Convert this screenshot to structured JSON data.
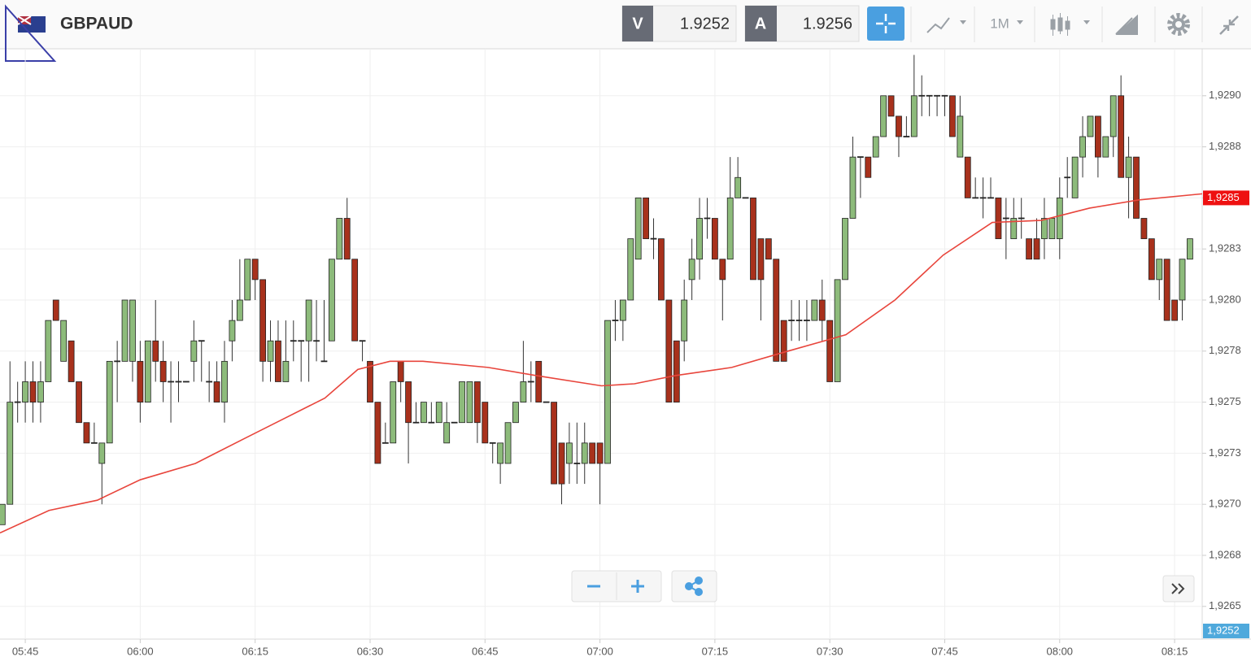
{
  "header": {
    "symbol": "GBPAUD",
    "bid_label": "V",
    "bid": "1.9252",
    "ask_label": "A",
    "ask": "1.9256",
    "timeframe": "1M"
  },
  "chart_data": {
    "type": "candlestick",
    "up_color": "#8dbb7b",
    "down_color": "#a8311c",
    "grid": true,
    "x": [
      342,
      343,
      344,
      345,
      346,
      347,
      348,
      349,
      350,
      351,
      352,
      353,
      354,
      355,
      356,
      357,
      358,
      359,
      360,
      361,
      362,
      363,
      364,
      365,
      366,
      367,
      368,
      369,
      370,
      371,
      372,
      373,
      374,
      375,
      376,
      377,
      378,
      379,
      380,
      381,
      382,
      383,
      384,
      385,
      386,
      387,
      388,
      389,
      390,
      391,
      392,
      393,
      394,
      395,
      396,
      397,
      398,
      399,
      400,
      401,
      402,
      403,
      404,
      405,
      406,
      407,
      408,
      409,
      410,
      411,
      412,
      413,
      414,
      415,
      416,
      417,
      418,
      419,
      420,
      421,
      422,
      423,
      424,
      425,
      426,
      427,
      428,
      429,
      430,
      431,
      432,
      433,
      434,
      435,
      436,
      437,
      438,
      439,
      440,
      441,
      442,
      443,
      444,
      445,
      446,
      447,
      448,
      449,
      450,
      451,
      452,
      453,
      454,
      455,
      456,
      457,
      458,
      459,
      460,
      461,
      462,
      463,
      464,
      465,
      466,
      467,
      468,
      469,
      470,
      471,
      472,
      473,
      474,
      475,
      476,
      477,
      478,
      479,
      480,
      481,
      482,
      483,
      484,
      485,
      486,
      487,
      488,
      489,
      490,
      491,
      492,
      493,
      494,
      495,
      496,
      497
    ],
    "open": [
      1.9269,
      1.927,
      1.9275,
      1.9275,
      1.9276,
      1.9275,
      1.9276,
      1.928,
      1.9277,
      1.9278,
      1.9276,
      1.9274,
      1.9273,
      1.9272,
      1.9273,
      1.9277,
      1.9277,
      1.9277,
      1.9277,
      1.9275,
      1.9278,
      1.9277,
      1.9276,
      1.9276,
      1.9276,
      1.9277,
      1.9278,
      1.9276,
      1.9276,
      1.9275,
      1.9278,
      1.9279,
      1.928,
      1.9282,
      1.9281,
      1.9277,
      1.9278,
      1.9276,
      1.9278,
      1.9278,
      1.9278,
      1.9278,
      1.9277,
      1.9278,
      1.9282,
      1.9284,
      1.9282,
      1.9278,
      1.9277,
      1.9275,
      1.9273,
      1.9273,
      1.9277,
      1.9276,
      1.9274,
      1.9274,
      1.9274,
      1.9274,
      1.9273,
      1.9274,
      1.9274,
      1.9274,
      1.9276,
      1.9275,
      1.9273,
      1.9272,
      1.9272,
      1.9274,
      1.9275,
      1.9276,
      1.9277,
      1.9275,
      1.9275,
      1.9273,
      1.9272,
      1.9272,
      1.9272,
      1.9273,
      1.9273,
      1.9272,
      1.9279,
      1.9279,
      1.928,
      1.9282,
      1.9285,
      1.9283,
      1.9283,
      1.928,
      1.9278,
      1.9278,
      1.9281,
      1.9282,
      1.9284,
      1.9284,
      1.9282,
      1.9282,
      1.9285,
      1.9285,
      1.9285,
      1.9283,
      1.9283,
      1.9282,
      1.9279,
      1.9279,
      1.9279,
      1.9279,
      1.9279,
      1.928,
      1.9279,
      1.9276,
      1.9281,
      1.9284,
      1.9287,
      1.9287,
      1.9287,
      1.9288,
      1.929,
      1.9289,
      1.9288,
      1.9288,
      1.929,
      1.929,
      1.929,
      1.929,
      1.929,
      1.9287,
      1.9287,
      1.9285,
      1.9285,
      1.9285,
      1.9285,
      1.9284,
      1.9283,
      1.9284,
      1.9283,
      1.9283,
      1.9283,
      1.9283,
      1.9283,
      1.9286,
      1.9285,
      1.9287,
      1.9288,
      1.9289,
      1.9287,
      1.9288,
      1.929,
      1.9286,
      1.9287,
      1.9284,
      1.9283,
      1.9281,
      1.9282,
      1.928,
      1.928,
      1.9282
    ],
    "high": [
      1.927,
      1.9277,
      1.9276,
      1.9277,
      1.9277,
      1.9277,
      1.9279,
      1.928,
      1.9279,
      1.9278,
      1.9276,
      1.9274,
      1.9274,
      1.9273,
      1.9277,
      1.9278,
      1.928,
      1.928,
      1.9278,
      1.9278,
      1.928,
      1.9278,
      1.9277,
      1.9277,
      1.9276,
      1.9279,
      1.9278,
      1.9277,
      1.9277,
      1.9278,
      1.928,
      1.9282,
      1.9282,
      1.9282,
      1.9281,
      1.9279,
      1.9279,
      1.9279,
      1.9279,
      1.9278,
      1.928,
      1.928,
      1.928,
      1.9282,
      1.9284,
      1.9285,
      1.9282,
      1.9278,
      1.9277,
      1.9275,
      1.9274,
      1.9276,
      1.9277,
      1.9276,
      1.9275,
      1.9275,
      1.9275,
      1.9275,
      1.9275,
      1.9274,
      1.9276,
      1.9276,
      1.9276,
      1.9275,
      1.9273,
      1.9273,
      1.9274,
      1.9275,
      1.9278,
      1.9277,
      1.9277,
      1.9275,
      1.9275,
      1.9273,
      1.9274,
      1.9274,
      1.9274,
      1.9273,
      1.9273,
      1.9279,
      1.928,
      1.928,
      1.9283,
      1.9285,
      1.9285,
      1.9284,
      1.9283,
      1.928,
      1.9278,
      1.9281,
      1.9283,
      1.9285,
      1.9285,
      1.9284,
      1.9282,
      1.9287,
      1.9287,
      1.9285,
      1.9285,
      1.9283,
      1.9283,
      1.9282,
      1.9279,
      1.928,
      1.928,
      1.928,
      1.928,
      1.9281,
      1.9279,
      1.9281,
      1.9284,
      1.9288,
      1.9287,
      1.9287,
      1.9288,
      1.929,
      1.929,
      1.9289,
      1.9289,
      1.9292,
      1.9291,
      1.929,
      1.929,
      1.929,
      1.929,
      1.929,
      1.9287,
      1.9286,
      1.9286,
      1.9286,
      1.9285,
      1.9285,
      1.9285,
      1.9285,
      1.9283,
      1.9284,
      1.9285,
      1.9284,
      1.9286,
      1.9287,
      1.9287,
      1.9289,
      1.9289,
      1.9289,
      1.9288,
      1.929,
      1.9291,
      1.9288,
      1.9287,
      1.9284,
      1.9283,
      1.9282,
      1.9282,
      1.928,
      1.9282,
      1.9283
    ],
    "low": [
      1.9269,
      1.927,
      1.9274,
      1.9274,
      1.9274,
      1.9274,
      1.9276,
      1.9279,
      1.9277,
      1.9276,
      1.9274,
      1.9273,
      1.9273,
      1.927,
      1.9273,
      1.9275,
      1.9277,
      1.9276,
      1.9274,
      1.9275,
      1.9276,
      1.9275,
      1.9274,
      1.9275,
      1.9276,
      1.9276,
      1.9276,
      1.9275,
      1.9275,
      1.9274,
      1.9277,
      1.9279,
      1.928,
      1.928,
      1.9276,
      1.9276,
      1.9276,
      1.9276,
      1.9277,
      1.9276,
      1.9276,
      1.9277,
      1.9277,
      1.9278,
      1.9282,
      1.9282,
      1.9278,
      1.9277,
      1.9275,
      1.9272,
      1.9273,
      1.9273,
      1.9275,
      1.9272,
      1.9274,
      1.9274,
      1.9274,
      1.9274,
      1.9273,
      1.9274,
      1.9274,
      1.9274,
      1.9273,
      1.9273,
      1.9272,
      1.9271,
      1.9272,
      1.9274,
      1.9275,
      1.9275,
      1.9275,
      1.9275,
      1.9271,
      1.927,
      1.9271,
      1.9271,
      1.9271,
      1.9272,
      1.927,
      1.9272,
      1.9278,
      1.9278,
      1.928,
      1.9282,
      1.9283,
      1.9282,
      1.928,
      1.9275,
      1.9275,
      1.9277,
      1.928,
      1.9281,
      1.9283,
      1.9282,
      1.9279,
      1.9282,
      1.9285,
      1.9285,
      1.9281,
      1.9279,
      1.9282,
      1.9277,
      1.9277,
      1.9278,
      1.9278,
      1.9278,
      1.9279,
      1.9278,
      1.9276,
      1.9276,
      1.9281,
      1.9284,
      1.9285,
      1.9286,
      1.9287,
      1.9288,
      1.9289,
      1.9287,
      1.9288,
      1.9288,
      1.9289,
      1.9289,
      1.9289,
      1.9289,
      1.9288,
      1.9287,
      1.9285,
      1.9285,
      1.9284,
      1.9285,
      1.9283,
      1.9282,
      1.9283,
      1.9283,
      1.9282,
      1.9282,
      1.9282,
      1.9283,
      1.9282,
      1.9285,
      1.9285,
      1.9286,
      1.9288,
      1.9286,
      1.9287,
      1.9287,
      1.9286,
      1.9284,
      1.9284,
      1.9283,
      1.9281,
      1.928,
      1.9279,
      1.9279,
      1.9279,
      1.9282
    ],
    "close": [
      1.927,
      1.9275,
      1.9275,
      1.9276,
      1.9275,
      1.9276,
      1.9279,
      1.9279,
      1.9279,
      1.9276,
      1.9274,
      1.9273,
      1.9273,
      1.9273,
      1.9277,
      1.9277,
      1.928,
      1.928,
      1.9275,
      1.9278,
      1.9277,
      1.9276,
      1.9276,
      1.9276,
      1.9276,
      1.9278,
      1.9278,
      1.9276,
      1.9275,
      1.9277,
      1.9279,
      1.928,
      1.9282,
      1.9281,
      1.9277,
      1.9278,
      1.9276,
      1.9277,
      1.9278,
      1.9278,
      1.928,
      1.9278,
      1.9277,
      1.9282,
      1.9284,
      1.9282,
      1.9278,
      1.9278,
      1.9275,
      1.9272,
      1.9273,
      1.9276,
      1.9276,
      1.9274,
      1.9274,
      1.9275,
      1.9274,
      1.9275,
      1.9274,
      1.9274,
      1.9276,
      1.9276,
      1.9274,
      1.9273,
      1.9273,
      1.9273,
      1.9274,
      1.9275,
      1.9276,
      1.9276,
      1.9275,
      1.9275,
      1.9271,
      1.9271,
      1.9273,
      1.9272,
      1.9273,
      1.9272,
      1.9272,
      1.9279,
      1.9279,
      1.928,
      1.9283,
      1.9285,
      1.9283,
      1.9283,
      1.928,
      1.9275,
      1.9275,
      1.928,
      1.9282,
      1.9284,
      1.9284,
      1.9282,
      1.9281,
      1.9285,
      1.9286,
      1.9285,
      1.9281,
      1.9281,
      1.9282,
      1.9277,
      1.9277,
      1.9279,
      1.9279,
      1.9279,
      1.928,
      1.9279,
      1.9276,
      1.9281,
      1.9284,
      1.9287,
      1.9287,
      1.9286,
      1.9288,
      1.929,
      1.9289,
      1.9288,
      1.9288,
      1.929,
      1.929,
      1.929,
      1.929,
      1.929,
      1.9288,
      1.9289,
      1.9285,
      1.9285,
      1.9285,
      1.9285,
      1.9283,
      1.9284,
      1.9284,
      1.9284,
      1.9282,
      1.9282,
      1.9284,
      1.9284,
      1.9285,
      1.9286,
      1.9287,
      1.9288,
      1.9289,
      1.9287,
      1.9288,
      1.929,
      1.9286,
      1.9287,
      1.9284,
      1.9283,
      1.9281,
      1.9282,
      1.9279,
      1.9279,
      1.9282,
      1.9283
    ],
    "overlays": [
      {
        "type": "line",
        "color": "#e8453c",
        "x": [
          341.7,
          348.1,
          354.4,
          360,
          367.2,
          373.5,
          378.8,
          384.1,
          388.4,
          392.6,
          396.9,
          405.4,
          411.7,
          420.2,
          424.5,
          429.8,
          437.2,
          443.6,
          452.1,
          458.5,
          464.8,
          471.2,
          477.6,
          483.9,
          490.3,
          498.6
        ],
        "values": [
          1.92686,
          1.92697,
          1.92702,
          1.92712,
          1.9272,
          1.92732,
          1.92742,
          1.92752,
          1.92766,
          1.9277,
          1.9277,
          1.92767,
          1.92763,
          1.92758,
          1.92759,
          1.92763,
          1.92767,
          1.92774,
          1.92783,
          1.928,
          1.92822,
          1.92838,
          1.92839,
          1.92845,
          1.92849,
          1.92852
        ]
      }
    ],
    "price_labels": [
      {
        "value": 1.9285,
        "label": "1,9285",
        "color": "#ee1111"
      },
      {
        "label": "1,9252",
        "color": "#4fa9dc"
      }
    ],
    "xlim": [
      341.7,
      498.6
    ],
    "ylim": [
      1.92634,
      1.92923
    ],
    "xticks": [
      {
        "value": 345,
        "label": "05:45"
      },
      {
        "value": 360,
        "label": "06:00"
      },
      {
        "value": 375,
        "label": "06:15"
      },
      {
        "value": 390,
        "label": "06:30"
      },
      {
        "value": 405,
        "label": "06:45"
      },
      {
        "value": 420,
        "label": "07:00"
      },
      {
        "value": 435,
        "label": "07:15"
      },
      {
        "value": 450,
        "label": "07:30"
      },
      {
        "value": 465,
        "label": "07:45"
      },
      {
        "value": 480,
        "label": "08:00"
      },
      {
        "value": 495,
        "label": "08:15"
      }
    ],
    "yticks": [
      {
        "value": 1.9265,
        "label": "1,9265"
      },
      {
        "value": 1.92675,
        "label": "1,9268"
      },
      {
        "value": 1.927,
        "label": "1,9270"
      },
      {
        "value": 1.92725,
        "label": "1,9273"
      },
      {
        "value": 1.9275,
        "label": "1,9275"
      },
      {
        "value": 1.92775,
        "label": "1,9278"
      },
      {
        "value": 1.928,
        "label": "1,9280"
      },
      {
        "value": 1.92825,
        "label": "1,9283"
      },
      {
        "value": 1.9285,
        "label": "1,9285"
      },
      {
        "value": 1.92875,
        "label": "1,9288"
      },
      {
        "value": 1.929,
        "label": "1,9290"
      }
    ]
  }
}
